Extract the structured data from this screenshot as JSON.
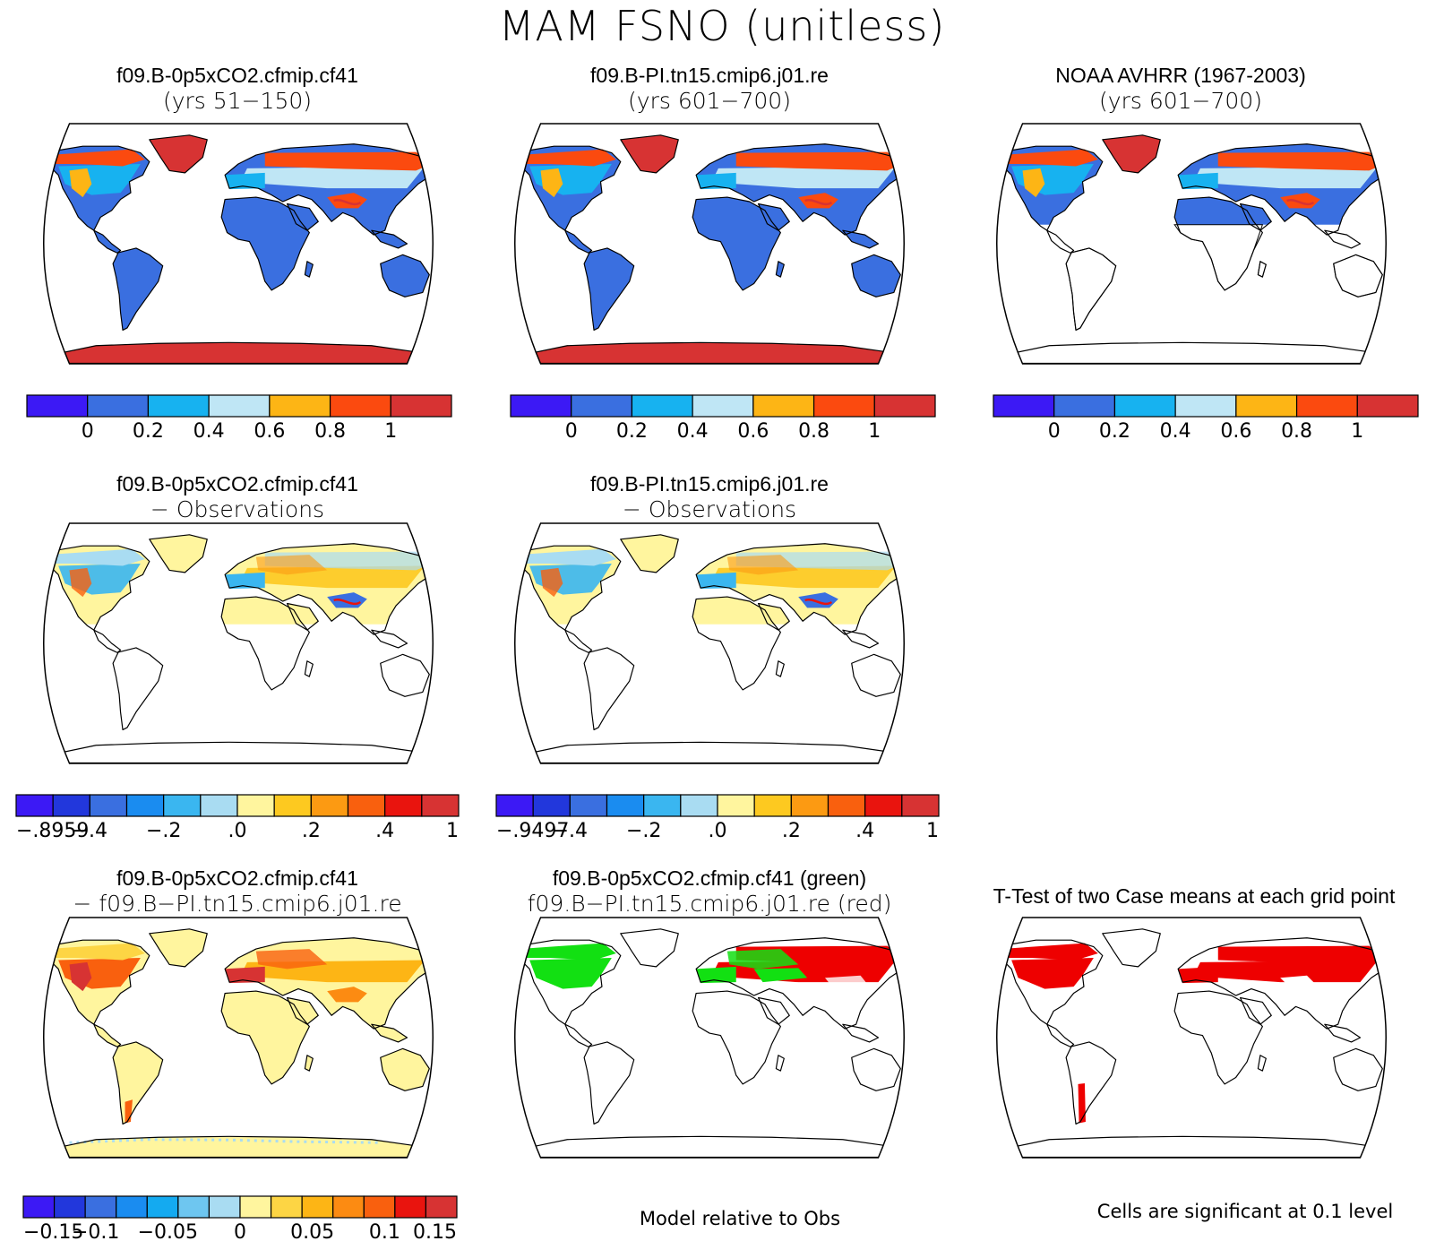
{
  "main_title": "MAM FSNO (unitless)",
  "colors": {
    "scale7": [
      "#3c19f5",
      "#3a6fe0",
      "#17b2f0",
      "#bfe6f5",
      "#fdb515",
      "#fb4a0f",
      "#d73333"
    ],
    "scale12": [
      "#3c19f5",
      "#2237dc",
      "#3a6fe0",
      "#1a8cf0",
      "#3ab6f0",
      "#a9dcf2",
      "#fff59e",
      "#fdc920",
      "#fc9a12",
      "#f9600e",
      "#e9140e",
      "#d73333"
    ],
    "scale14": [
      "#3c19f5",
      "#2237dc",
      "#3a6fe0",
      "#1a8cf0",
      "#14aaf0",
      "#6ec6f0",
      "#a9dcf2",
      "#fff59e",
      "#fdd544",
      "#fdb515",
      "#fc8b12",
      "#f9600e",
      "#e9140e",
      "#d73333"
    ],
    "ocean": "#ffffff",
    "coast": "#000000",
    "sig_red": "#ee0000",
    "sig_green": "#12e012"
  },
  "panels": [
    {
      "title1": "f09.B-0p5xCO2.cfmip.cf41",
      "title2": "(yrs 51−150)",
      "icon": "world-map-icon",
      "fill": "abs-snow-cover"
    },
    {
      "title1": "f09.B-PI.tn15.cmip6.j01.re",
      "title2": "(yrs 601−700)",
      "icon": "world-map-icon",
      "fill": "abs-snow-cover"
    },
    {
      "title1": "NOAA AVHRR (1967-2003)",
      "title2": "(yrs 601−700)",
      "icon": "world-map-icon",
      "fill": "obs-snow-cover"
    },
    {
      "title1": "f09.B-0p5xCO2.cfmip.cf41",
      "title2": "− Observations",
      "icon": "world-map-icon",
      "fill": "model-minus-obs"
    },
    {
      "title1": "f09.B-PI.tn15.cmip6.j01.re",
      "title2": "− Observations",
      "icon": "world-map-icon",
      "fill": "model-minus-obs"
    },
    {
      "title1": "f09.B-0p5xCO2.cfmip.cf41",
      "title2": "− f09.B−PI.tn15.cmip6.j01.re",
      "icon": "world-map-icon",
      "fill": "case-difference"
    },
    {
      "title1": "f09.B-0p5xCO2.cfmip.cf41 (green)",
      "title2": "f09.B−PI.tn15.cmip6.j01.re (red)",
      "icon": "world-map-icon",
      "fill": "model-vs-obs-green-red"
    },
    {
      "title1": "T-Test of two Case means at each grid point",
      "title2": "",
      "icon": "world-map-icon",
      "fill": "ttest-significance"
    }
  ],
  "colorbars": [
    {
      "palette": "scale7",
      "labels": [
        "0",
        "0.2",
        "0.4",
        "0.6",
        "0.8",
        "1"
      ]
    },
    {
      "palette": "scale7",
      "labels": [
        "0",
        "0.2",
        "0.4",
        "0.6",
        "0.8",
        "1"
      ]
    },
    {
      "palette": "scale7",
      "labels": [
        "0",
        "0.2",
        "0.4",
        "0.6",
        "0.8",
        "1"
      ]
    },
    {
      "palette": "scale12",
      "labels": [
        "−.8959",
        "−.4",
        "−.2",
        ".0",
        ".2",
        ".4",
        "1"
      ]
    },
    {
      "palette": "scale12",
      "labels": [
        "−.9497",
        "−.4",
        "−.2",
        ".0",
        ".2",
        ".4",
        "1"
      ]
    },
    {
      "palette": "scale14",
      "labels": [
        "−0.15",
        "−0.1",
        "−0.05",
        "0",
        "0.05",
        "0.1",
        "0.15"
      ]
    }
  ],
  "footnotes": {
    "model_relative": "Model relative to Obs",
    "cells_significant": "Cells are significant at 0.1 level"
  }
}
